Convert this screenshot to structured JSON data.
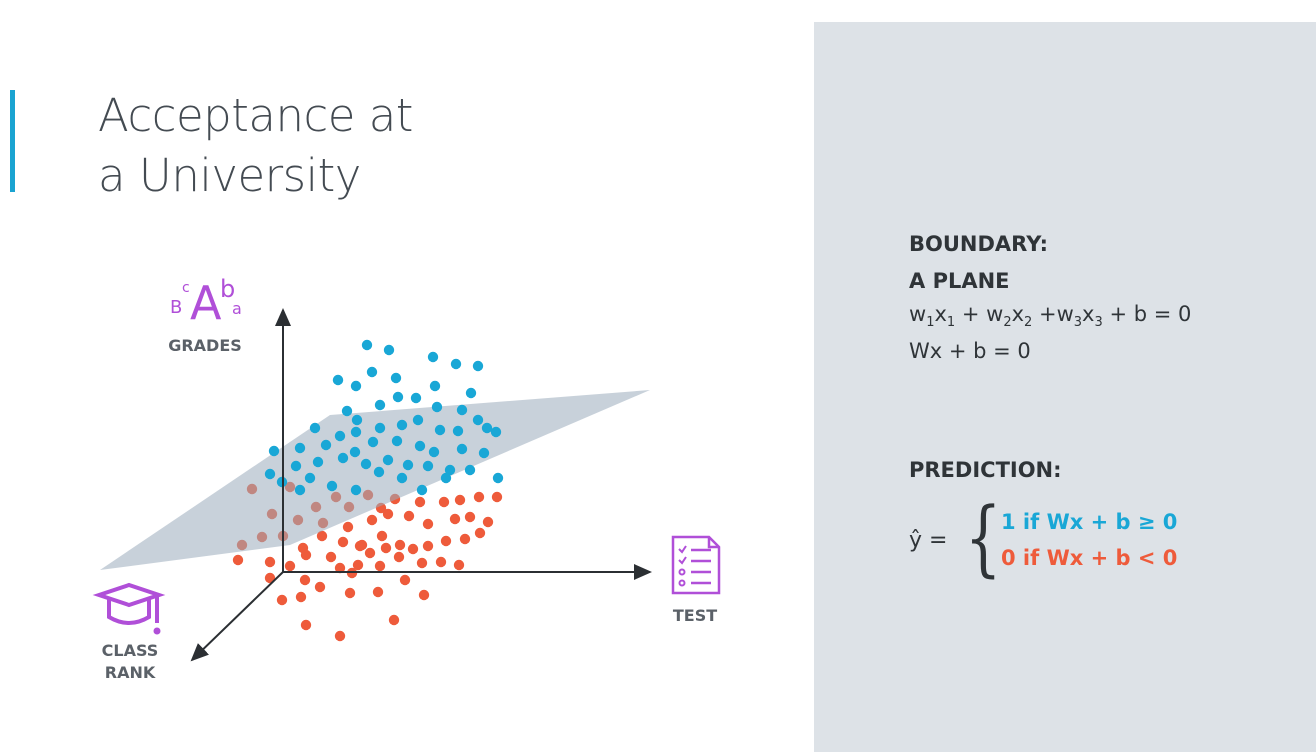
{
  "colors": {
    "accent": "#1aa3d1",
    "positive": "#19a7d6",
    "negative": "#ee5b3b",
    "plane": "#9aacbb",
    "icon": "#b04fd8",
    "axis": "#2b2f33"
  },
  "title": {
    "line1": "Acceptance at",
    "line2": "a University"
  },
  "axes": {
    "grades": "GRADES",
    "test": "TEST",
    "class_rank_line1": "CLASS",
    "class_rank_line2": "RANK"
  },
  "grade_icon": {
    "letters": [
      "B",
      "c",
      "A",
      "b",
      "a"
    ],
    "icon": "grade-letters-icon"
  },
  "icons": {
    "test": "test-checklist-icon",
    "class_rank": "graduation-cap-icon"
  },
  "boundary": {
    "heading1": "BOUNDARY:",
    "heading2": "A PLANE",
    "eq1_parts": [
      "w",
      "1",
      "x",
      "1",
      " + w",
      "2",
      "x",
      "2",
      " +w",
      "3",
      "x",
      "3",
      " + b = 0"
    ],
    "eq2": "Wx + b = 0"
  },
  "prediction": {
    "heading": "PREDICTION:",
    "yhat": "ŷ =",
    "case1": "1 if Wx + b ≥ 0",
    "case0": "0 if Wx + b < 0"
  }
}
